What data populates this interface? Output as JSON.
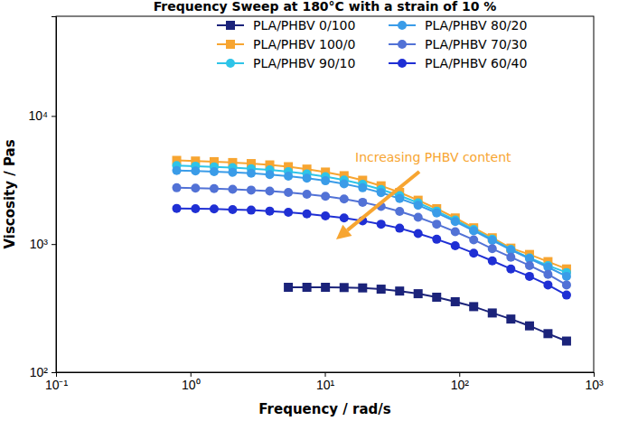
{
  "chart_data": {
    "type": "line",
    "title": "Frequency Sweep at 180°C with a strain of 10 %",
    "x_label": "Frequency / rad/s",
    "y_label": "Viscosity / Pas",
    "annotation": "Increasing PHBV content",
    "log": true,
    "grid": false,
    "legend": "upper right",
    "xlim": [
      0.1,
      1000
    ],
    "ylim": [
      100,
      60000
    ],
    "xticks": [
      {
        "value": 0.1,
        "label": "10⁻¹"
      },
      {
        "value": 1,
        "label": "10⁰"
      },
      {
        "value": 10,
        "label": "10¹"
      },
      {
        "value": 100,
        "label": "10²"
      },
      {
        "value": 1000,
        "label": "10³"
      }
    ],
    "yticks": [
      {
        "value": 100,
        "label": "10²"
      },
      {
        "value": 1000,
        "label": "10³"
      },
      {
        "value": 10000,
        "label": "10⁴"
      }
    ],
    "x": [
      0.79,
      1.09,
      1.5,
      2.06,
      2.83,
      3.89,
      5.35,
      7.35,
      10.1,
      13.9,
      19.1,
      26.2,
      36,
      49.4,
      67.9,
      93.3,
      128,
      176,
      242,
      333,
      457,
      628
    ],
    "series": [
      {
        "name": "PLA/PHBV 0/100",
        "color": "#1b237a",
        "marker": "square",
        "values": [
          null,
          null,
          null,
          null,
          null,
          null,
          460,
          460,
          460,
          458,
          455,
          445,
          430,
          410,
          385,
          355,
          325,
          290,
          260,
          230,
          200,
          175
        ]
      },
      {
        "name": "PLA/PHBV 100/0",
        "color": "#f7a531",
        "marker": "square",
        "values": [
          4500,
          4450,
          4400,
          4330,
          4250,
          4150,
          4020,
          3850,
          3650,
          3420,
          3150,
          2850,
          2530,
          2200,
          1890,
          1600,
          1340,
          1120,
          930,
          830,
          730,
          640
        ]
      },
      {
        "name": "PLA/PHBV 90/10",
        "color": "#2ec4e8",
        "marker": "circle",
        "values": [
          4100,
          4060,
          4010,
          3950,
          3880,
          3790,
          3680,
          3530,
          3360,
          3160,
          2930,
          2670,
          2390,
          2100,
          1810,
          1540,
          1300,
          1090,
          910,
          780,
          680,
          600
        ]
      },
      {
        "name": "PLA/PHBV 80/20",
        "color": "#3a9ce8",
        "marker": "circle",
        "values": [
          3750,
          3720,
          3680,
          3630,
          3570,
          3490,
          3390,
          3270,
          3120,
          2950,
          2750,
          2520,
          2270,
          2010,
          1750,
          1500,
          1270,
          1070,
          900,
          770,
          660,
          560
        ]
      },
      {
        "name": "PLA/PHBV 70/30",
        "color": "#5272d6",
        "marker": "circle",
        "values": [
          2750,
          2730,
          2710,
          2680,
          2640,
          2590,
          2530,
          2450,
          2360,
          2250,
          2120,
          1970,
          1800,
          1620,
          1430,
          1250,
          1080,
          920,
          790,
          680,
          580,
          480
        ]
      },
      {
        "name": "PLA/PHBV 60/40",
        "color": "#1f2fd4",
        "marker": "circle",
        "values": [
          1900,
          1890,
          1880,
          1860,
          1840,
          1810,
          1770,
          1720,
          1660,
          1600,
          1520,
          1430,
          1330,
          1210,
          1090,
          970,
          850,
          740,
          640,
          560,
          480,
          400
        ]
      }
    ]
  }
}
